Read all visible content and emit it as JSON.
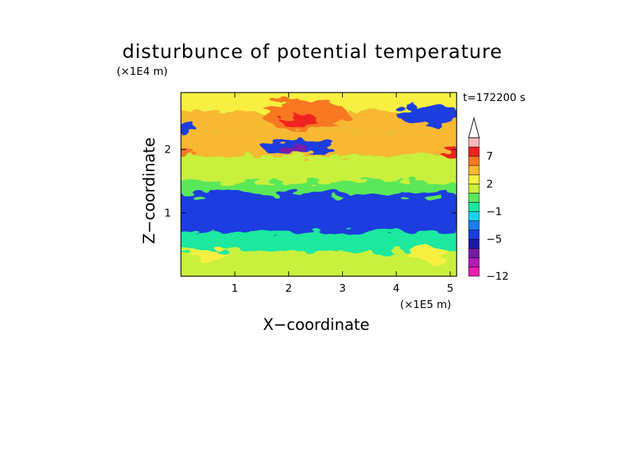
{
  "chart_data": {
    "type": "heatmap",
    "title": "disturbunce of potential temperature",
    "xlabel": "X−coordinate",
    "ylabel": "Z−coordinate",
    "x_unit": "(×1E5 m)",
    "y_unit": "(×1E4 m)",
    "time_label": "t=172200 s",
    "xlim": [
      0,
      5.12
    ],
    "ylim": [
      0,
      2.9
    ],
    "x_ticks": [
      1,
      2,
      3,
      4,
      5
    ],
    "y_ticks": [
      1,
      2
    ],
    "colorbar": {
      "levels": [
        -12,
        -11,
        -9,
        -7,
        -5,
        -3,
        -2,
        -1,
        0,
        1,
        2,
        3,
        5,
        7,
        9,
        11
      ],
      "tick_labels": [
        "7",
        "2",
        "−1",
        "−5",
        "−12"
      ],
      "tick_values": [
        7,
        2,
        -1,
        -5,
        -12
      ],
      "colors": [
        "#ee1db4",
        "#b31ab5",
        "#7a1aa8",
        "#1a1aa8",
        "#1a3ee0",
        "#1a7ef0",
        "#1ad2f0",
        "#1ae8a0",
        "#5ae85a",
        "#c8f03c",
        "#f8f040",
        "#f8b830",
        "#f87820",
        "#f02020",
        "#f7b8b8"
      ],
      "extend": "max"
    },
    "z_bands": [
      {
        "z": [
          2.6,
          2.9
        ],
        "value": 2,
        "note": ""
      },
      {
        "z": [
          2.3,
          2.6
        ],
        "value": 4,
        "note": ""
      },
      {
        "z": [
          1.9,
          2.3
        ],
        "value": 4,
        "note": ""
      },
      {
        "z": [
          1.5,
          1.9
        ],
        "value": 1,
        "note": ""
      },
      {
        "z": [
          1.3,
          1.5
        ],
        "value": 0,
        "note": ""
      },
      {
        "z": [
          0.7,
          1.3
        ],
        "value": -4,
        "note": ""
      },
      {
        "z": [
          0.4,
          0.7
        ],
        "value": -1,
        "note": ""
      },
      {
        "z": [
          0.0,
          0.4
        ],
        "value": 1,
        "note": ""
      }
    ]
  }
}
